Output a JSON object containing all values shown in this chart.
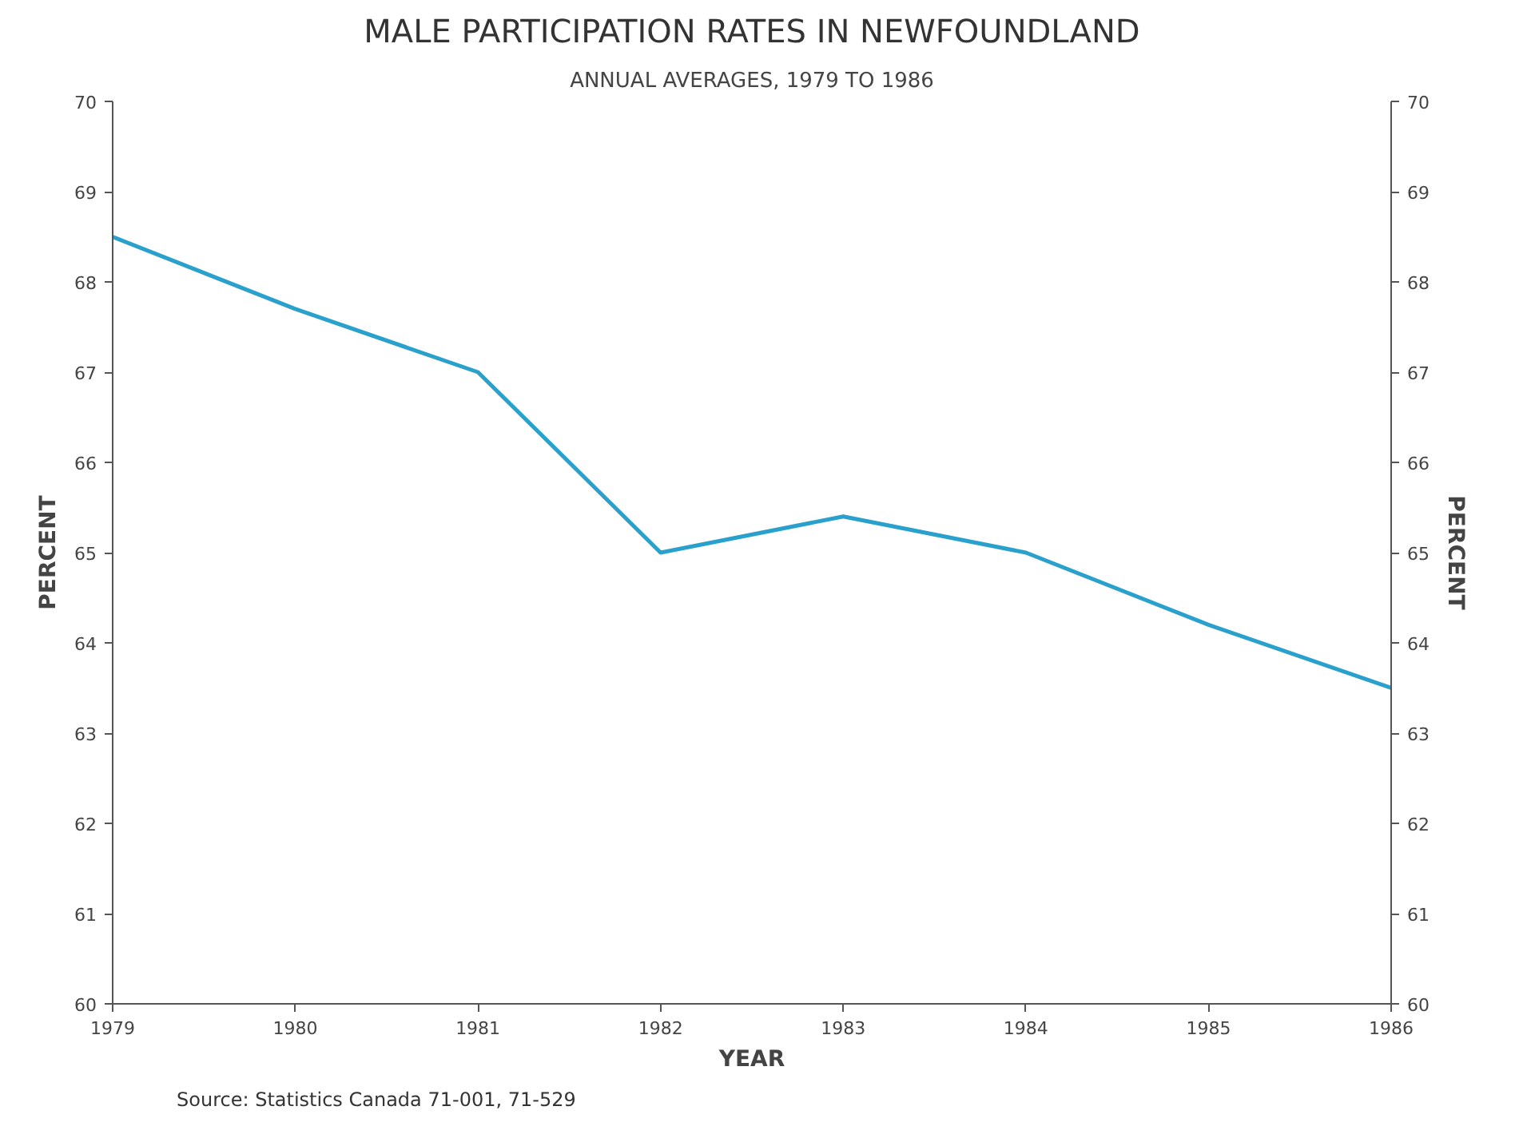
{
  "chart_data": {
    "type": "line",
    "title": "MALE PARTICIPATION RATES IN NEWFOUNDLAND",
    "subtitle": "ANNUAL AVERAGES, 1979 TO 1986",
    "xlabel": "YEAR",
    "ylabel": "PERCENT",
    "y2label": "PERCENT",
    "x": [
      1979,
      1980,
      1981,
      1982,
      1983,
      1984,
      1985,
      1986
    ],
    "series": [
      {
        "color": "#2aa0cc",
        "values": [
          68.5,
          67.7,
          67.0,
          65.0,
          65.4,
          65.0,
          64.2,
          63.5
        ]
      }
    ],
    "xlim": [
      1979,
      1986
    ],
    "xticks": [
      1979,
      1980,
      1981,
      1982,
      1983,
      1984,
      1985,
      1986
    ],
    "ylim": [
      60,
      70
    ],
    "yticks": [
      60,
      61,
      62,
      63,
      64,
      65,
      66,
      67,
      68,
      69,
      70
    ],
    "y2lim": [
      60,
      70
    ],
    "y2ticks": [
      60,
      61,
      62,
      63,
      64,
      65,
      66,
      67,
      68,
      69,
      70
    ],
    "annotations": [
      "Source: Statistics Canada 71-001, 71-529"
    ],
    "grid": false,
    "marker": "none",
    "line_style": "solid"
  }
}
